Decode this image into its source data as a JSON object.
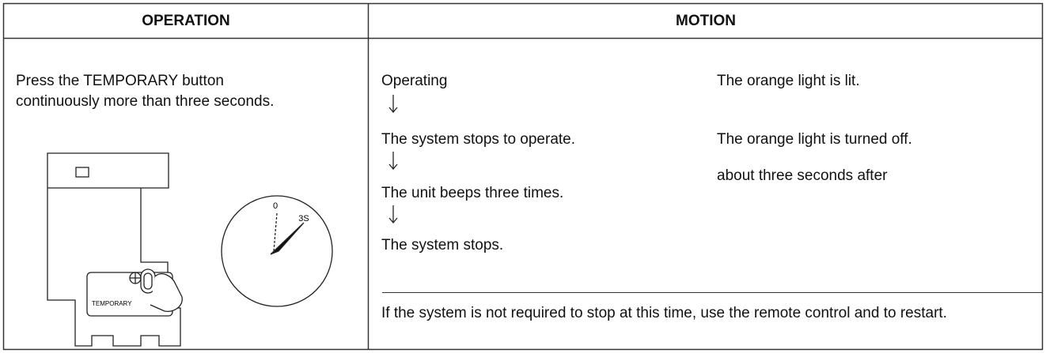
{
  "table": {
    "header": [
      "OPERATION",
      "MOTION"
    ],
    "operation": {
      "text": "Press the TEMPORARY button continuously more than three seconds.",
      "illustration": {
        "button_label": "TEMPORARY",
        "dial_start": "0",
        "dial_end": "3S"
      }
    },
    "motion": {
      "steps": [
        {
          "state": "Operating",
          "light": "The orange light is lit."
        },
        {
          "state": "The system stops to operate.",
          "light": "The orange light is turned off.",
          "note": "about three seconds after"
        },
        {
          "state": "The unit beeps three times."
        },
        {
          "state": "The system stops."
        }
      ],
      "footnote": "If the system is not required to stop at this time, use the remote control and to restart."
    }
  }
}
